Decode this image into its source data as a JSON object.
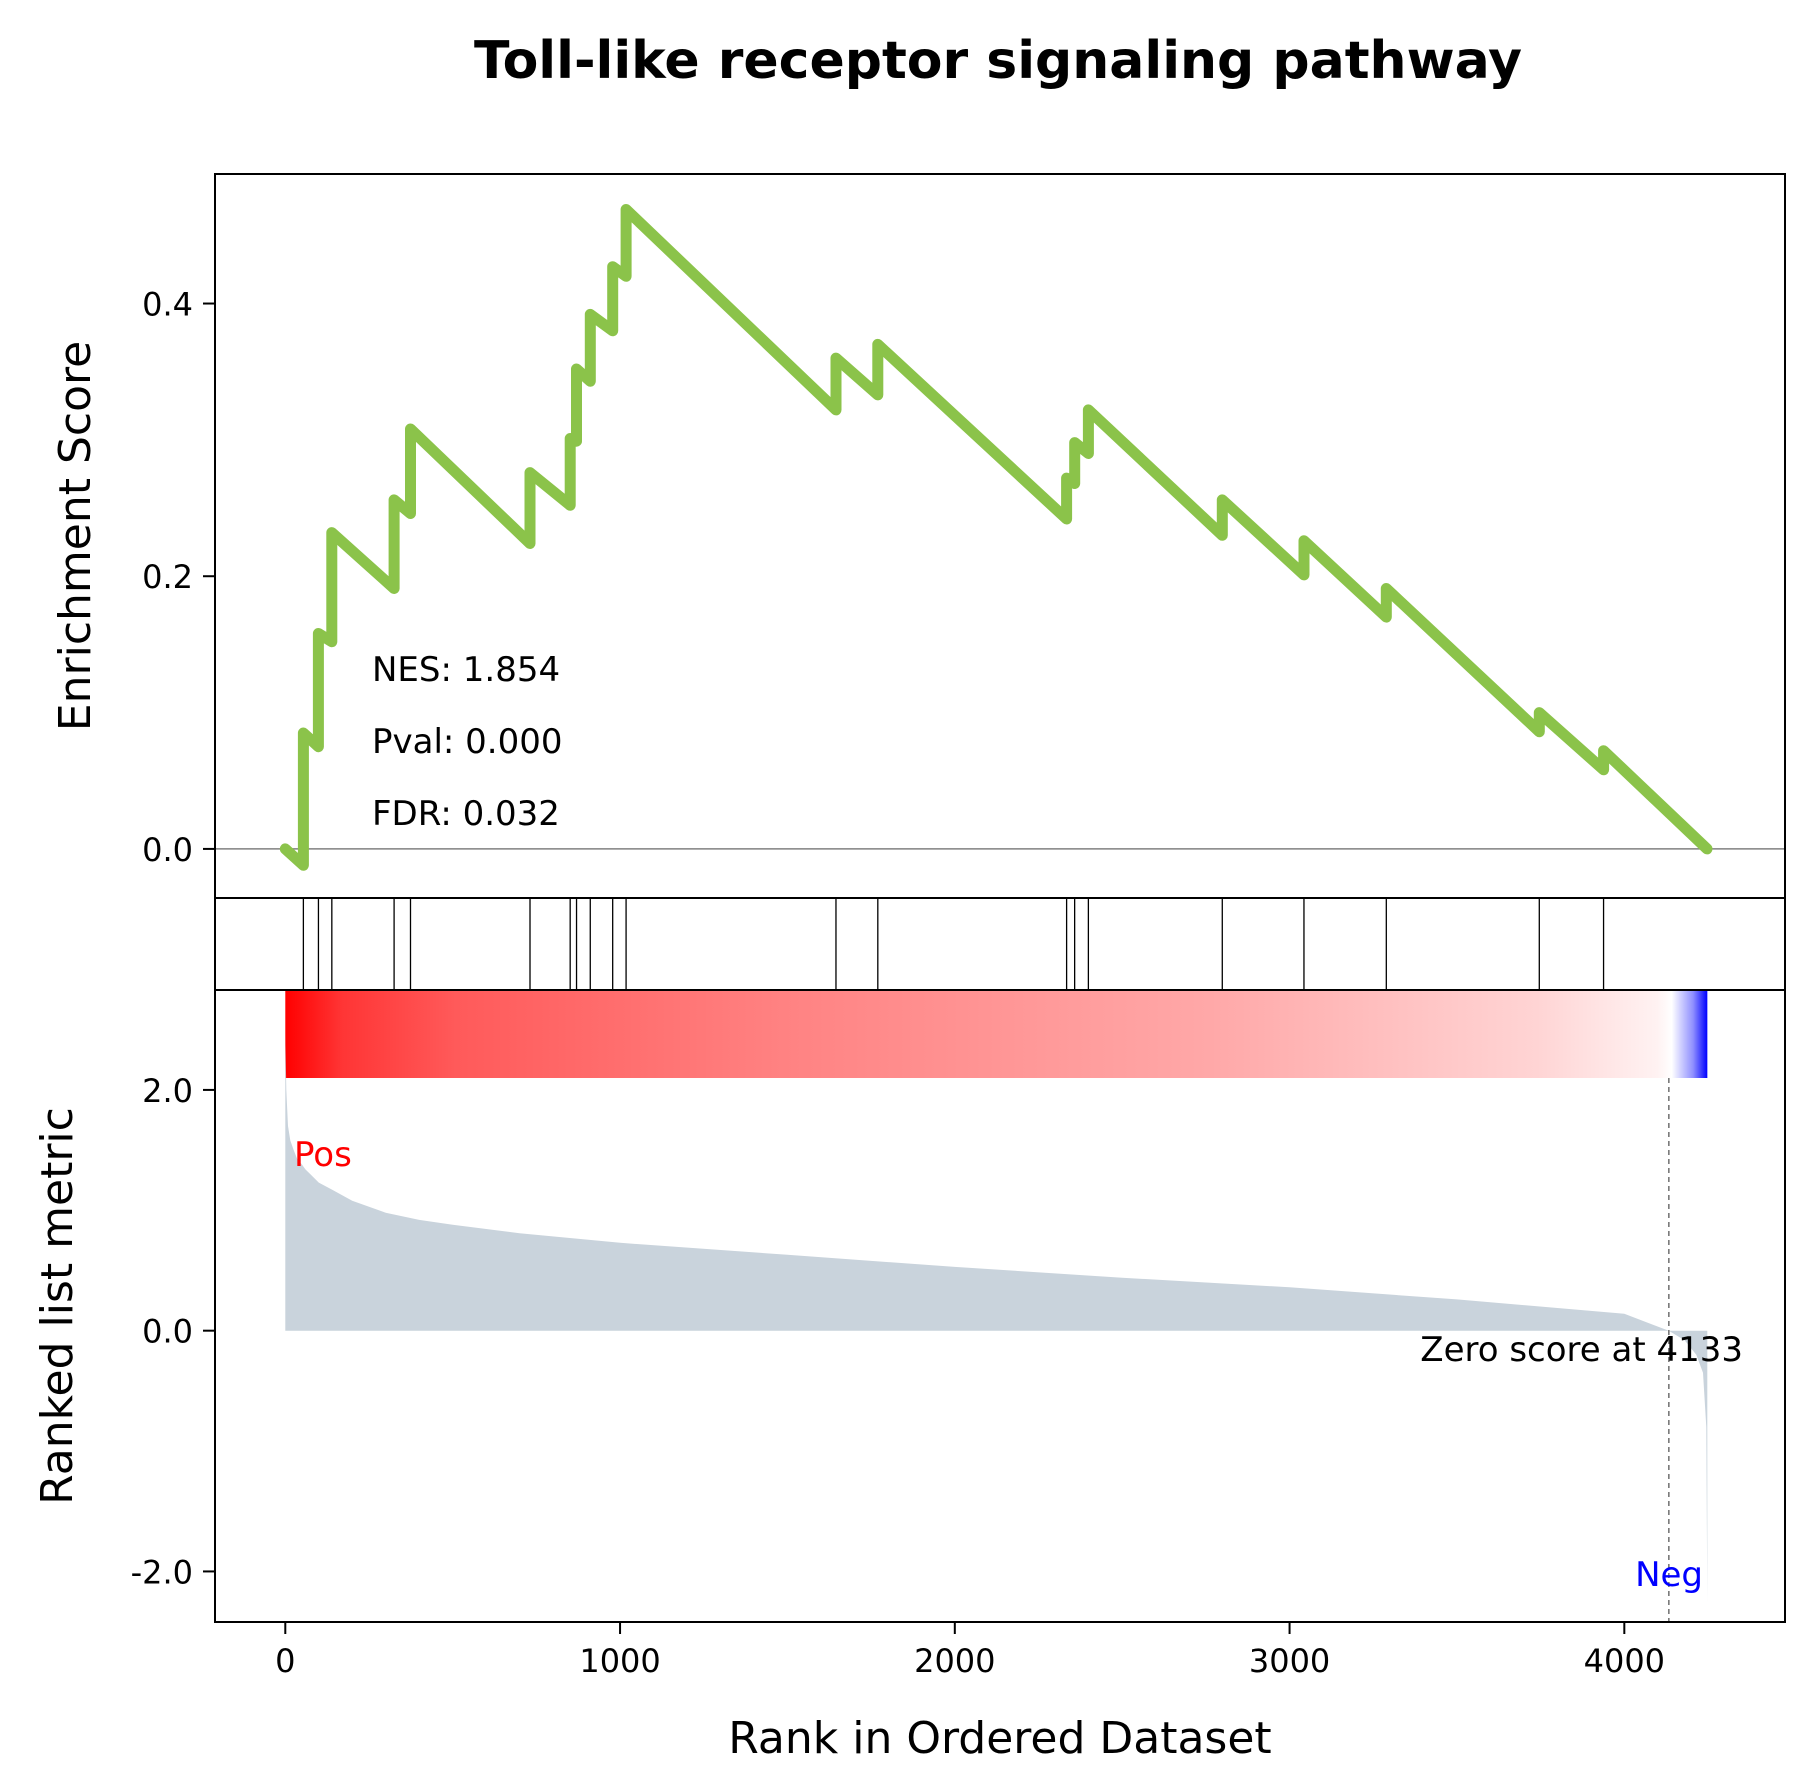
{
  "chart_data": {
    "type": "line",
    "title": "Toll-like receptor signaling pathway",
    "xlabel": "Rank in Ordered Dataset",
    "xlim": [
      -210,
      4480
    ],
    "xticks": [
      0,
      1000,
      2000,
      3000,
      4000
    ],
    "xtick_labels": [
      "0",
      "1000",
      "2000",
      "3000",
      "4000"
    ],
    "n_genes": 4248,
    "enrichment": {
      "ylabel": "Enrichment Score",
      "ylim": [
        -0.036,
        0.495
      ],
      "yticks": [
        0.0,
        0.2,
        0.4
      ],
      "ytick_labels": [
        "0.0",
        "0.2",
        "0.4"
      ],
      "line_color": "#8bc34a",
      "baseline_color": "#808080",
      "es_curve": {
        "x": [
          0,
          54,
          54,
          99,
          99,
          139,
          139,
          325,
          325,
          374,
          374,
          731,
          731,
          851,
          851,
          870,
          870,
          911,
          911,
          978,
          978,
          1018,
          1018,
          1645,
          1645,
          1770,
          1770,
          2334,
          2334,
          2358,
          2358,
          2399,
          2399,
          2799,
          2799,
          3043,
          3043,
          3289,
          3289,
          3746,
          3746,
          3938,
          3938,
          4247
        ],
        "y": [
          0.0,
          -0.012,
          0.085,
          0.075,
          0.158,
          0.152,
          0.232,
          0.191,
          0.256,
          0.246,
          0.308,
          0.224,
          0.276,
          0.252,
          0.301,
          0.299,
          0.352,
          0.343,
          0.392,
          0.38,
          0.427,
          0.42,
          0.469,
          0.322,
          0.36,
          0.333,
          0.37,
          0.242,
          0.272,
          0.268,
          0.298,
          0.29,
          0.322,
          0.23,
          0.256,
          0.201,
          0.226,
          0.17,
          0.191,
          0.086,
          0.1,
          0.058,
          0.072,
          0.0
        ]
      },
      "stats": [
        {
          "label": "NES: 1.854"
        },
        {
          "label": "Pval: 0.000"
        },
        {
          "label": "FDR: 0.032"
        }
      ]
    },
    "hits": [
      54,
      99,
      139,
      325,
      374,
      731,
      851,
      870,
      911,
      978,
      1018,
      1645,
      1770,
      2334,
      2358,
      2399,
      2799,
      3043,
      3289,
      3746,
      3938
    ],
    "ranked_metric": {
      "ylabel": "Ranked list metric",
      "ylim": [
        -2.42,
        2.83
      ],
      "yticks": [
        2.0,
        0.0,
        -2.0
      ],
      "ytick_labels": [
        "2.0",
        "0.0",
        "-2.0"
      ],
      "fill_color": "#c9d3dc",
      "profile": {
        "x": [
          0,
          3,
          8,
          15,
          25,
          35,
          50,
          60,
          75,
          100,
          140,
          200,
          300,
          400,
          500,
          700,
          1000,
          1500,
          2000,
          2500,
          3000,
          3500,
          4000,
          4133,
          4180,
          4215,
          4235,
          4245,
          4248
        ],
        "y": [
          2.47,
          2.0,
          1.7,
          1.58,
          1.5,
          1.43,
          1.38,
          1.34,
          1.3,
          1.23,
          1.17,
          1.08,
          0.98,
          0.92,
          0.88,
          0.81,
          0.73,
          0.63,
          0.53,
          0.44,
          0.36,
          0.26,
          0.14,
          0.0,
          -0.08,
          -0.2,
          -0.35,
          -0.8,
          -2.26
        ]
      },
      "zero_cross": 4133,
      "zero_label": "Zero score at 4133",
      "pos_label": "Pos",
      "neg_label": "Neg",
      "pos_color": "#ff0000",
      "neg_color": "#0000ff"
    },
    "colorbar": {
      "high_color": "#ff0000",
      "mid_color": "#ffffff",
      "low_color": "#0000ff"
    },
    "grid": false
  }
}
